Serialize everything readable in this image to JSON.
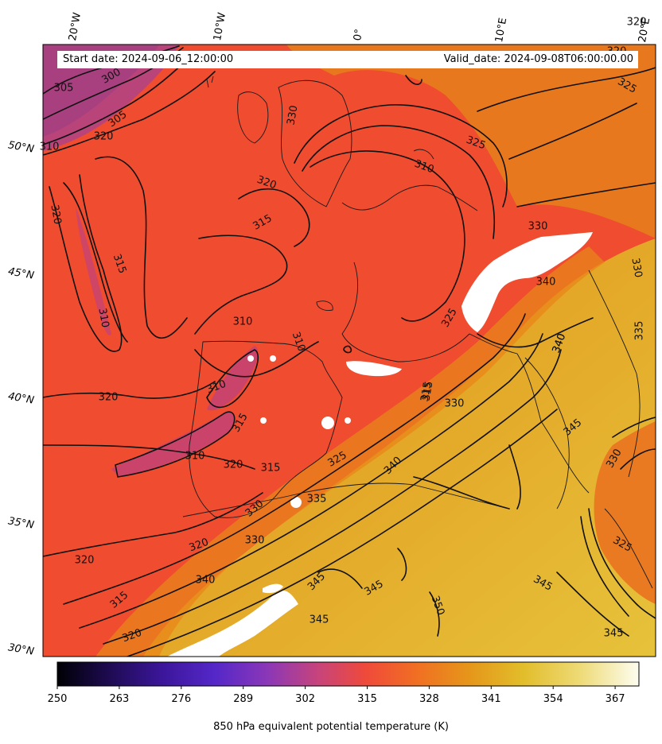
{
  "header": {
    "start_date": "Start date: 2024-09-06_12:00:00",
    "valid_date": "Valid_date: 2024-09-08T06:00:00.00"
  },
  "axes": {
    "lon_labels": [
      "20°W",
      "10°W",
      "0°",
      "10°E",
      "20°E"
    ],
    "lat_labels": [
      "50°N",
      "45°N",
      "40°N",
      "35°N",
      "30°N"
    ]
  },
  "contour_labels": [
    "305",
    "300",
    "305",
    "310",
    "320",
    "320",
    "315",
    "310",
    "320",
    "315",
    "320",
    "310",
    "320",
    "315",
    "310",
    "310",
    "320",
    "315",
    "320",
    "315",
    "330",
    "320",
    "330",
    "340",
    "315",
    "320",
    "325",
    "330",
    "335",
    "340",
    "345",
    "345",
    "345",
    "350",
    "345",
    "345",
    "330",
    "340",
    "345",
    "330",
    "325",
    "325",
    "310",
    "330",
    "340",
    "330",
    "335",
    "325",
    "325",
    "320",
    "310",
    "315",
    "340",
    "320"
  ],
  "colorbar": {
    "ticks": [
      "250",
      "263",
      "276",
      "289",
      "302",
      "315",
      "328",
      "341",
      "354",
      "367"
    ],
    "min": 250,
    "max": 372,
    "label": "850 hPa equivalent potential temperature (K)",
    "colormap": [
      "#000004",
      "#1e0b52",
      "#3f17a0",
      "#5a28c8",
      "#8a37b8",
      "#c1447a",
      "#ef4a3a",
      "#f46d22",
      "#e8951a",
      "#e3b824",
      "#ecd76a",
      "#fbfbe9"
    ]
  }
}
